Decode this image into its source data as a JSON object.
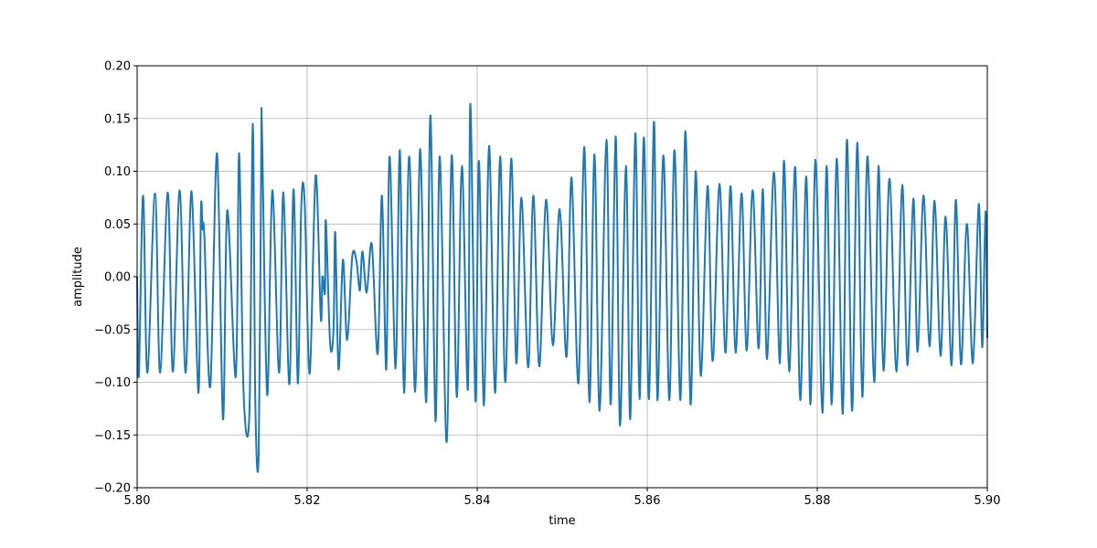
{
  "chart_data": {
    "type": "line",
    "title": "",
    "xlabel": "time",
    "ylabel": "amplitude",
    "xlim": [
      5.8,
      5.9
    ],
    "ylim": [
      -0.2,
      0.2
    ],
    "grid": true,
    "line_color": "#1f77b4",
    "grid_color": "#b0b0b0",
    "x_ticks": [
      5.8,
      5.82,
      5.84,
      5.86,
      5.88,
      5.9
    ],
    "x_tick_labels": [
      "5.80",
      "5.82",
      "5.84",
      "5.86",
      "5.88",
      "5.90"
    ],
    "y_ticks": [
      -0.2,
      -0.15,
      -0.1,
      -0.05,
      0.0,
      0.05,
      0.1,
      0.15,
      0.2
    ],
    "y_tick_labels": [
      "−0.20",
      "−0.15",
      "−0.10",
      "−0.05",
      "0.00",
      "0.05",
      "0.10",
      "0.15",
      "0.20"
    ],
    "series": [
      {
        "values": [
          [
            5.8,
            0.0
          ],
          [
            5.8002,
            -0.094
          ],
          [
            5.8007,
            0.077
          ],
          [
            5.8012,
            -0.091
          ],
          [
            5.8021,
            0.079
          ],
          [
            5.8027,
            -0.091
          ],
          [
            5.8036,
            0.08
          ],
          [
            5.8042,
            -0.09
          ],
          [
            5.805,
            0.082
          ],
          [
            5.8057,
            -0.091
          ],
          [
            5.8064,
            0.081
          ],
          [
            5.8072,
            -0.11
          ],
          [
            5.8075,
            0.063
          ],
          [
            5.8077,
            0.045
          ],
          [
            5.8079,
            0.04
          ],
          [
            5.8086,
            -0.104
          ],
          [
            5.8094,
            0.117
          ],
          [
            5.8101,
            -0.135
          ],
          [
            5.8106,
            0.063
          ],
          [
            5.8116,
            -0.095
          ],
          [
            5.812,
            0.117
          ],
          [
            5.8125,
            -0.106
          ],
          [
            5.8132,
            -0.13
          ],
          [
            5.8136,
            0.145
          ],
          [
            5.8139,
            -0.12
          ],
          [
            5.8143,
            -0.168
          ],
          [
            5.8146,
            0.12
          ],
          [
            5.8147,
            0.133
          ],
          [
            5.8153,
            -0.112
          ],
          [
            5.8159,
            0.082
          ],
          [
            5.8167,
            -0.091
          ],
          [
            5.8172,
            0.08
          ],
          [
            5.8179,
            -0.102
          ],
          [
            5.8184,
            0.083
          ],
          [
            5.8189,
            -0.101
          ],
          [
            5.8193,
            0.065
          ],
          [
            5.8197,
            0.072
          ],
          [
            5.8203,
            -0.092
          ],
          [
            5.821,
            0.096
          ],
          [
            5.8216,
            -0.039
          ],
          [
            5.8218,
            0.0
          ],
          [
            5.8221,
            -0.015
          ],
          [
            5.8222,
            0.053
          ],
          [
            5.8227,
            -0.063
          ],
          [
            5.8231,
            -0.05
          ],
          [
            5.8233,
            0.042
          ],
          [
            5.8237,
            -0.088
          ],
          [
            5.8242,
            0.016
          ],
          [
            5.8247,
            -0.06
          ],
          [
            5.8253,
            0.019
          ],
          [
            5.8258,
            0.015
          ],
          [
            5.8262,
            -0.013
          ],
          [
            5.8265,
            0.024
          ],
          [
            5.827,
            -0.015
          ],
          [
            5.8276,
            0.031
          ],
          [
            5.8283,
            -0.073
          ],
          [
            5.8288,
            0.077
          ],
          [
            5.8293,
            -0.088
          ],
          [
            5.8297,
            0.114
          ],
          [
            5.8304,
            -0.087
          ],
          [
            5.8309,
            0.12
          ],
          [
            5.8314,
            -0.11
          ],
          [
            5.832,
            0.114
          ],
          [
            5.8327,
            -0.109
          ],
          [
            5.8333,
            0.121
          ],
          [
            5.834,
            -0.119
          ],
          [
            5.8345,
            0.153
          ],
          [
            5.8351,
            -0.137
          ],
          [
            5.8356,
            0.114
          ],
          [
            5.8364,
            -0.157
          ],
          [
            5.837,
            0.115
          ],
          [
            5.8376,
            -0.114
          ],
          [
            5.8382,
            0.105
          ],
          [
            5.8389,
            -0.107
          ],
          [
            5.8392,
            0.164
          ],
          [
            5.8398,
            -0.118
          ],
          [
            5.8402,
            0.11
          ],
          [
            5.8408,
            -0.122
          ],
          [
            5.8414,
            0.124
          ],
          [
            5.8421,
            -0.11
          ],
          [
            5.8427,
            0.114
          ],
          [
            5.8433,
            -0.1
          ],
          [
            5.844,
            0.112
          ],
          [
            5.8446,
            -0.082
          ],
          [
            5.8452,
            0.075
          ],
          [
            5.846,
            -0.086
          ],
          [
            5.8466,
            0.077
          ],
          [
            5.8473,
            -0.085
          ],
          [
            5.8481,
            0.073
          ],
          [
            5.8489,
            -0.065
          ],
          [
            5.8497,
            0.064
          ],
          [
            5.8505,
            -0.076
          ],
          [
            5.8511,
            0.094
          ],
          [
            5.8519,
            -0.101
          ],
          [
            5.8526,
            0.123
          ],
          [
            5.8532,
            -0.119
          ],
          [
            5.8538,
            0.116
          ],
          [
            5.8544,
            -0.127
          ],
          [
            5.8552,
            0.13
          ],
          [
            5.8557,
            -0.121
          ],
          [
            5.8563,
            0.133
          ],
          [
            5.8568,
            -0.141
          ],
          [
            5.8575,
            0.105
          ],
          [
            5.858,
            -0.135
          ],
          [
            5.8586,
            0.136
          ],
          [
            5.8591,
            -0.116
          ],
          [
            5.8596,
            0.132
          ],
          [
            5.8602,
            -0.116
          ],
          [
            5.8608,
            0.147
          ],
          [
            5.8612,
            -0.117
          ],
          [
            5.8619,
            0.115
          ],
          [
            5.8626,
            -0.117
          ],
          [
            5.8632,
            0.12
          ],
          [
            5.8639,
            -0.117
          ],
          [
            5.8645,
            0.138
          ],
          [
            5.8651,
            -0.121
          ],
          [
            5.8657,
            0.1
          ],
          [
            5.8663,
            -0.094
          ],
          [
            5.8671,
            0.086
          ],
          [
            5.8677,
            -0.08
          ],
          [
            5.8685,
            0.088
          ],
          [
            5.8692,
            -0.072
          ],
          [
            5.8698,
            0.086
          ],
          [
            5.8704,
            -0.072
          ],
          [
            5.8711,
            0.079
          ],
          [
            5.8717,
            -0.07
          ],
          [
            5.8724,
            0.082
          ],
          [
            5.8731,
            -0.068
          ],
          [
            5.8736,
            0.083
          ],
          [
            5.8741,
            -0.078
          ],
          [
            5.8749,
            0.099
          ],
          [
            5.8756,
            -0.082
          ],
          [
            5.8761,
            0.11
          ],
          [
            5.8767,
            -0.09
          ],
          [
            5.8774,
            0.104
          ],
          [
            5.878,
            -0.117
          ],
          [
            5.8787,
            0.095
          ],
          [
            5.8792,
            -0.121
          ],
          [
            5.8798,
            0.111
          ],
          [
            5.8806,
            -0.129
          ],
          [
            5.8811,
            0.105
          ],
          [
            5.8817,
            -0.121
          ],
          [
            5.8823,
            0.112
          ],
          [
            5.883,
            -0.13
          ],
          [
            5.8835,
            0.13
          ],
          [
            5.8841,
            -0.127
          ],
          [
            5.8847,
            0.127
          ],
          [
            5.8853,
            -0.114
          ],
          [
            5.8859,
            0.114
          ],
          [
            5.8867,
            -0.1
          ],
          [
            5.8872,
            0.105
          ],
          [
            5.8878,
            -0.089
          ],
          [
            5.8885,
            0.093
          ],
          [
            5.8893,
            -0.09
          ],
          [
            5.89,
            0.087
          ],
          [
            5.8906,
            -0.084
          ],
          [
            5.8913,
            0.074
          ],
          [
            5.8918,
            -0.071
          ],
          [
            5.8925,
            0.077
          ],
          [
            5.8932,
            -0.066
          ],
          [
            5.8938,
            0.072
          ],
          [
            5.8945,
            -0.075
          ],
          [
            5.8951,
            0.057
          ],
          [
            5.8958,
            -0.084
          ],
          [
            5.8963,
            0.073
          ],
          [
            5.8969,
            -0.083
          ],
          [
            5.8976,
            0.05
          ],
          [
            5.8983,
            -0.082
          ],
          [
            5.899,
            0.069
          ],
          [
            5.8994,
            -0.067
          ],
          [
            5.8998,
            0.062
          ],
          [
            5.9,
            -0.058
          ]
        ]
      }
    ]
  }
}
